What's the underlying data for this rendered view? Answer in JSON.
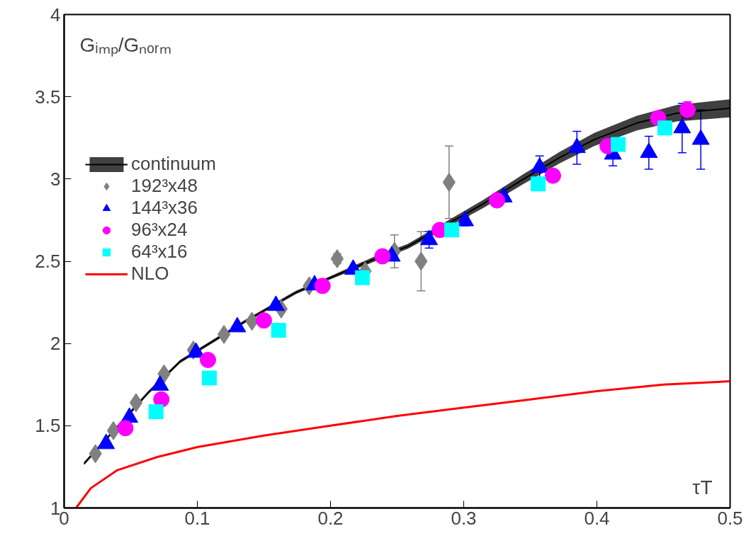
{
  "chart_data": {
    "type": "scatter",
    "xlabel": "τT",
    "ylabel": "Gᵢₘₚ/Gₙₒᵣₘ",
    "xlim": [
      0,
      0.5
    ],
    "ylim": [
      1,
      4
    ],
    "xticks": [
      0,
      0.1,
      0.2,
      0.3,
      0.4,
      0.5
    ],
    "yticks": [
      1,
      1.5,
      2,
      2.5,
      3,
      3.5,
      4
    ],
    "grid": false,
    "legend": "top left",
    "series": [
      {
        "name": "continuum",
        "type": "line",
        "color": "#000000",
        "x": [
          0.015,
          0.063,
          0.087,
          0.135,
          0.174,
          0.2,
          0.232,
          0.258,
          0.315,
          0.345,
          0.372,
          0.398,
          0.43,
          0.46,
          0.5
        ],
        "values": [
          1.27,
          1.7,
          1.89,
          2.13,
          2.31,
          2.4,
          2.51,
          2.59,
          2.85,
          3.0,
          3.13,
          3.24,
          3.34,
          3.4,
          3.43
        ],
        "lower": [
          1.26,
          1.69,
          1.88,
          2.12,
          2.3,
          2.39,
          2.495,
          2.575,
          2.825,
          2.97,
          3.095,
          3.2,
          3.295,
          3.35,
          3.375
        ],
        "upper": [
          1.28,
          1.71,
          1.9,
          2.14,
          2.32,
          2.41,
          2.525,
          2.605,
          2.875,
          3.03,
          3.165,
          3.28,
          3.385,
          3.45,
          3.485
        ]
      },
      {
        "name": "192³x48",
        "marker": "diamond",
        "color": "#808080",
        "x": [
          0.0235,
          0.037,
          0.054,
          0.075,
          0.097,
          0.12,
          0.141,
          0.163,
          0.184,
          0.205,
          0.226,
          0.248,
          0.268,
          0.289
        ],
        "values": [
          1.33,
          1.47,
          1.64,
          1.815,
          1.96,
          2.055,
          2.135,
          2.21,
          2.35,
          2.515,
          2.44,
          2.56,
          2.5,
          2.98
        ],
        "errors": [
          null,
          null,
          null,
          null,
          null,
          null,
          null,
          null,
          0.02,
          0.03,
          0.05,
          0.1,
          0.18,
          0.22
        ]
      },
      {
        "name": "144³x36",
        "marker": "triangle",
        "color": "#0000ff",
        "x": [
          0.0315,
          0.049,
          0.072,
          0.099,
          0.13,
          0.159,
          0.188,
          0.217,
          0.246,
          0.274,
          0.301,
          0.33,
          0.357,
          0.385,
          0.412,
          0.439,
          0.464,
          0.478
        ],
        "values": [
          1.39,
          1.55,
          1.745,
          1.945,
          2.1,
          2.23,
          2.355,
          2.45,
          2.53,
          2.63,
          2.745,
          2.89,
          3.07,
          3.19,
          3.15,
          3.16,
          3.31,
          3.24
        ],
        "errors": [
          null,
          null,
          null,
          null,
          null,
          null,
          null,
          null,
          null,
          0.05,
          0.03,
          0.03,
          0.07,
          0.1,
          0.07,
          0.1,
          0.15,
          0.18
        ]
      },
      {
        "name": "96³x24",
        "marker": "circle",
        "color": "#ff00ff",
        "x": [
          0.046,
          0.073,
          0.108,
          0.15,
          0.194,
          0.239,
          0.282,
          0.325,
          0.367,
          0.408,
          0.446,
          0.468
        ],
        "values": [
          1.485,
          1.66,
          1.9,
          2.14,
          2.35,
          2.53,
          2.69,
          2.87,
          3.02,
          3.2,
          3.37,
          3.42
        ],
        "errors": [
          null,
          null,
          null,
          null,
          null,
          null,
          null,
          null,
          null,
          null,
          null,
          0.05
        ]
      },
      {
        "name": "64³x16",
        "marker": "square",
        "color": "#00ffff",
        "x": [
          0.069,
          0.109,
          0.161,
          0.224,
          0.291,
          0.356,
          0.416,
          0.451
        ],
        "values": [
          1.585,
          1.79,
          2.08,
          2.4,
          2.69,
          2.97,
          3.21,
          3.31
        ]
      },
      {
        "name": "NLO",
        "type": "line",
        "color": "#ff0000",
        "x": [
          0.009,
          0.02,
          0.04,
          0.07,
          0.1,
          0.15,
          0.2,
          0.25,
          0.3,
          0.35,
          0.4,
          0.45,
          0.5
        ],
        "values": [
          1.0,
          1.12,
          1.23,
          1.31,
          1.37,
          1.44,
          1.5,
          1.56,
          1.61,
          1.66,
          1.71,
          1.75,
          1.77
        ]
      }
    ]
  }
}
